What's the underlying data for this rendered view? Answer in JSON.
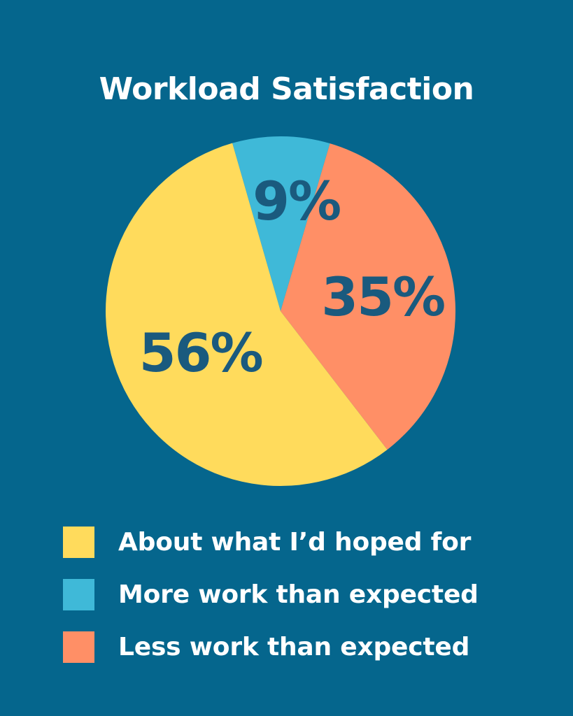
{
  "chart_data": {
    "type": "pie",
    "title": "Workload Satisfaction",
    "slices": [
      {
        "label": "More work than expected",
        "value": 9,
        "display": "9%",
        "color": "#3fb9d8"
      },
      {
        "label": "Less work than expected",
        "value": 35,
        "display": "35%",
        "color": "#ff8f66"
      },
      {
        "label": "About what I’d hoped for",
        "value": 56,
        "display": "56%",
        "color": "#ffdb5c"
      }
    ],
    "legend": [
      {
        "label": "About what I’d hoped for",
        "color": "#ffdb5c"
      },
      {
        "label": "More work than expected",
        "color": "#3fb9d8"
      },
      {
        "label": "Less work than expected",
        "color": "#ff8f66"
      }
    ],
    "legend_position": "bottom"
  },
  "colors": {
    "background": "#05668d",
    "label_text": "#1a5a7e"
  }
}
